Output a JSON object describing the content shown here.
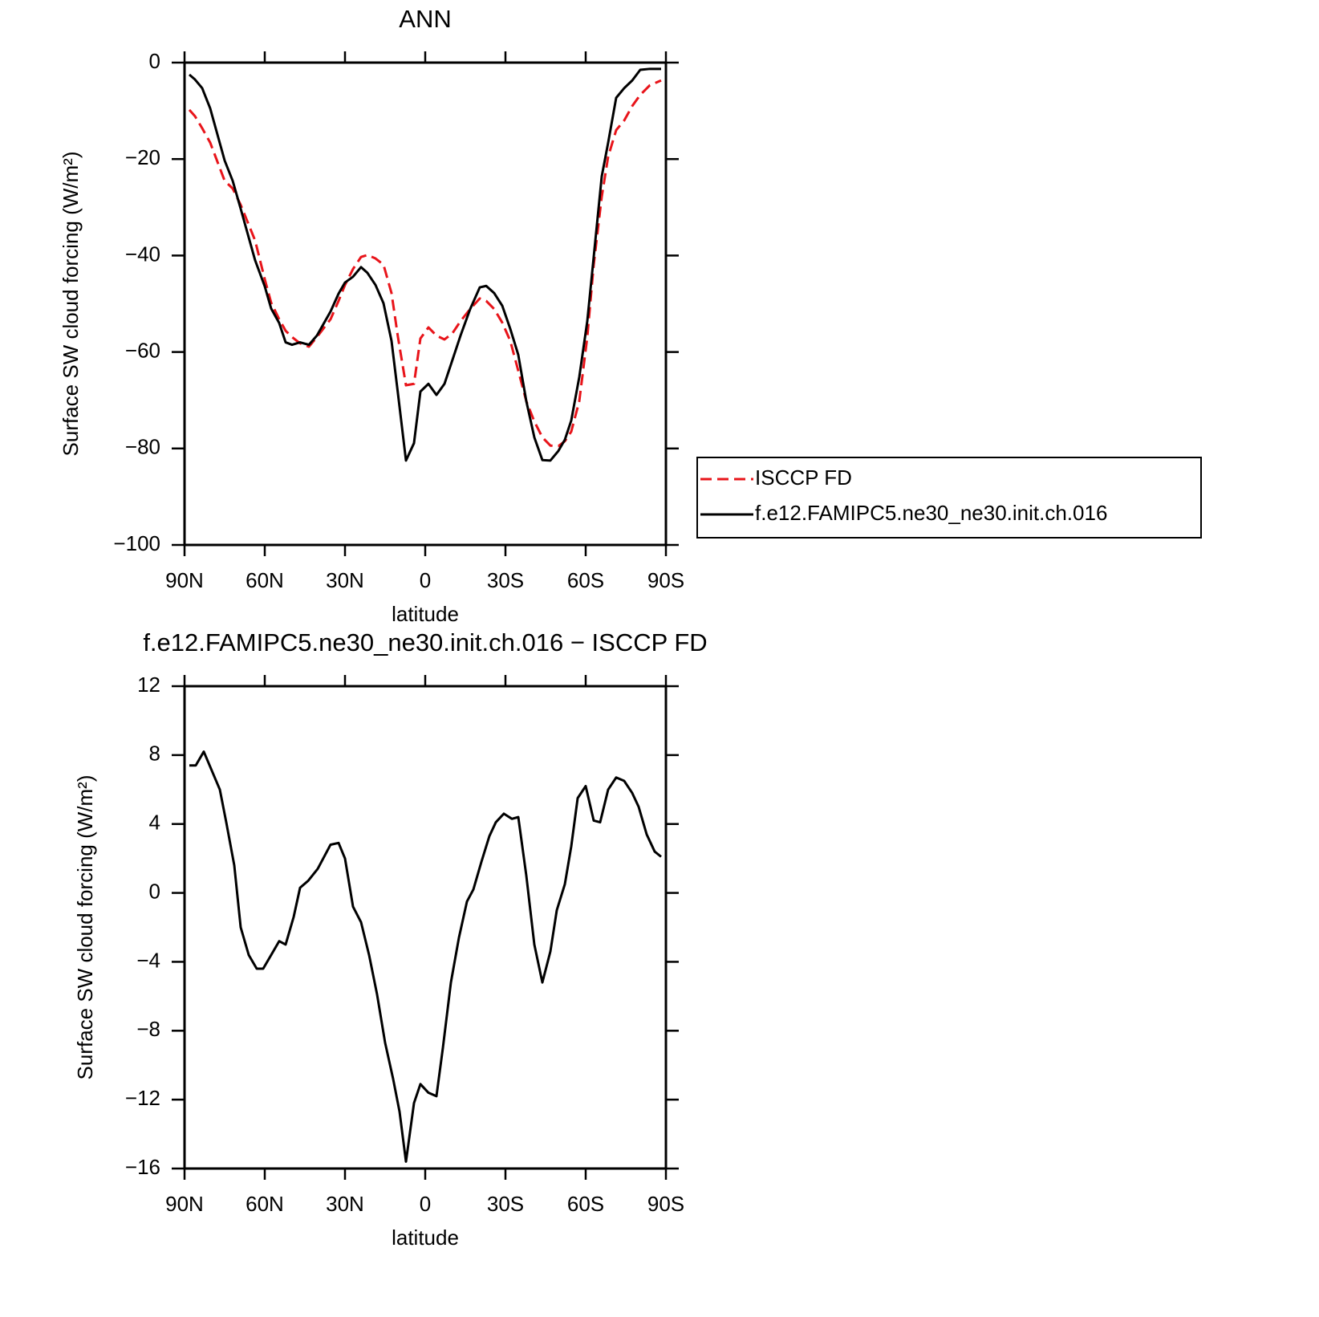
{
  "chart_data": [
    {
      "type": "line",
      "title": "ANN",
      "x_label": "latitude",
      "y_label": "Surface SW cloud forcing (W/m²)",
      "x": [
        88.2,
        86.1,
        83.4,
        80.4,
        75,
        72,
        69,
        63.6,
        60,
        57.6,
        54.6,
        52.2,
        49.8,
        46.8,
        43.5,
        40.5,
        35.4,
        32.4,
        30,
        27,
        24,
        21.6,
        18.6,
        15.6,
        12.6,
        10.2,
        7.2,
        4.2,
        1.8,
        -1.2,
        -4.2,
        -7.2,
        -10.2,
        -13.2,
        -16.8,
        -20.4,
        -22.8,
        -25.8,
        -28.8,
        -31.8,
        -34.8,
        -37.8,
        -40.8,
        -43.8,
        -46.8,
        -49.8,
        -52.2,
        -54.6,
        -57.6,
        -60.6,
        -63,
        -66,
        -68.4,
        -71.4,
        -74.4,
        -77.4,
        -80.4,
        -84,
        -88.2
      ],
      "series": [
        {
          "name": "ISCCP FD",
          "color": "#e8141a",
          "style": "dashed",
          "values": [
            -9.8,
            -11.1,
            -13.6,
            -16.6,
            -24.5,
            -26.1,
            -29.5,
            -36.9,
            -44.9,
            -49.8,
            -53.2,
            -55.6,
            -56.9,
            -58.2,
            -58.9,
            -56.9,
            -53.2,
            -49.4,
            -46.1,
            -42.8,
            -40.3,
            -39.9,
            -40.6,
            -41.9,
            -47.8,
            -56.9,
            -66.9,
            -66.6,
            -57.2,
            -54.9,
            -56.6,
            -57.4,
            -56.1,
            -53.6,
            -51.1,
            -48.9,
            -49.4,
            -51.1,
            -53.9,
            -57.7,
            -63.9,
            -70.2,
            -74.4,
            -77.7,
            -79.4,
            -79.5,
            -78.5,
            -76.5,
            -70.2,
            -56.9,
            -41.9,
            -27.8,
            -19.5,
            -14,
            -12,
            -9,
            -6.7,
            -4.7,
            -3.7
          ]
        },
        {
          "name": "f.e12.FAMIPC5.ne30_ne30.init.ch.016",
          "color": "#000000",
          "style": "solid",
          "values": [
            -2.5,
            -3.5,
            -5.3,
            -9.5,
            -20.3,
            -24.5,
            -30.3,
            -41,
            -46.4,
            -51,
            -54,
            -58,
            -58.5,
            -58,
            -58.5,
            -56.6,
            -51.6,
            -47.9,
            -45.6,
            -44.4,
            -42.4,
            -43.6,
            -46.1,
            -49.9,
            -57.7,
            -68.6,
            -82.5,
            -78.9,
            -68.2,
            -66.6,
            -68.9,
            -66.6,
            -61.6,
            -56.6,
            -51.1,
            -46.6,
            -46.3,
            -47.8,
            -50.4,
            -55.2,
            -60.6,
            -70.2,
            -77.7,
            -82.4,
            -82.5,
            -80.5,
            -78.2,
            -74.2,
            -65.2,
            -53.6,
            -40.3,
            -23.6,
            -16.6,
            -7.3,
            -5.3,
            -3.7,
            -1.5,
            -1.3,
            -1.3
          ]
        }
      ],
      "xlim": [
        90,
        -90
      ],
      "xticks": [
        {
          "value": 90,
          "label": "90N"
        },
        {
          "value": 60,
          "label": "60N"
        },
        {
          "value": 30,
          "label": "30N"
        },
        0,
        {
          "value": -30,
          "label": "30S"
        },
        {
          "value": -60,
          "label": "60S"
        },
        {
          "value": -90,
          "label": "90S"
        }
      ],
      "ylim": [
        -100,
        0
      ],
      "yticks": [
        0,
        {
          "value": -20,
          "label": "−20"
        },
        {
          "value": -40,
          "label": "−40"
        },
        {
          "value": -60,
          "label": "−60"
        },
        {
          "value": -80,
          "label": "−80"
        },
        {
          "value": -100,
          "label": "−100"
        }
      ],
      "legend": "right"
    },
    {
      "type": "line",
      "title": "f.e12.FAMIPC5.ne30_ne30.init.ch.016 − ISCCP FD",
      "x_label": "latitude",
      "y_label": "Surface SW cloud forcing (W/m²)",
      "x": [
        88.2,
        85.8,
        82.8,
        79.8,
        76.8,
        74.4,
        71.4,
        69,
        66,
        63,
        60.6,
        57.6,
        54.6,
        52.2,
        49.2,
        46.8,
        43.8,
        40.2,
        35.4,
        32.4,
        30,
        27,
        24,
        21,
        18,
        15,
        12,
        9.6,
        7.2,
        4.2,
        1.8,
        -1.2,
        -4.2,
        -6.6,
        -9.6,
        -12.6,
        -15.6,
        -18,
        -21,
        -24,
        -26.4,
        -29.4,
        -32.4,
        -34.8,
        -37.8,
        -40.8,
        -43.8,
        -46.8,
        -49.2,
        -52.2,
        -54.6,
        -57,
        -60,
        -63,
        -65.4,
        -68.4,
        -71.4,
        -74.4,
        -77.4,
        -79.8,
        -82.8,
        -85.8,
        -88.2
      ],
      "values": [
        7.4,
        7.4,
        8.2,
        7.1,
        6.0,
        4.1,
        1.6,
        -2.0,
        -3.6,
        -4.4,
        -4.4,
        -3.6,
        -2.8,
        -3.0,
        -1.4,
        0.3,
        0.7,
        1.4,
        2.8,
        2.9,
        2.0,
        -0.8,
        -1.7,
        -3.6,
        -5.9,
        -8.7,
        -10.8,
        -12.7,
        -15.6,
        -12.2,
        -11.1,
        -11.6,
        -11.8,
        -9.0,
        -5.2,
        -2.6,
        -0.5,
        0.2,
        1.8,
        3.3,
        4.1,
        4.6,
        4.3,
        4.4,
        1.0,
        -3.0,
        -5.2,
        -3.4,
        -1.0,
        0.5,
        2.7,
        5.5,
        6.2,
        4.2,
        4.1,
        6.0,
        6.7,
        6.5,
        5.8,
        5.0,
        3.4,
        2.4,
        2.1
      ],
      "color": "#000000",
      "xlim": [
        90,
        -90
      ],
      "xticks": [
        {
          "value": 90,
          "label": "90N"
        },
        {
          "value": 60,
          "label": "60N"
        },
        {
          "value": 30,
          "label": "30N"
        },
        0,
        {
          "value": -30,
          "label": "30S"
        },
        {
          "value": -60,
          "label": "60S"
        },
        {
          "value": -90,
          "label": "90S"
        }
      ],
      "ylim": [
        -16,
        12
      ],
      "yticks": [
        12,
        8,
        4,
        0,
        {
          "value": -4,
          "label": "−4"
        },
        {
          "value": -8,
          "label": "−8"
        },
        {
          "value": -12,
          "label": "−12"
        },
        {
          "value": -16,
          "label": "−16"
        }
      ]
    }
  ]
}
